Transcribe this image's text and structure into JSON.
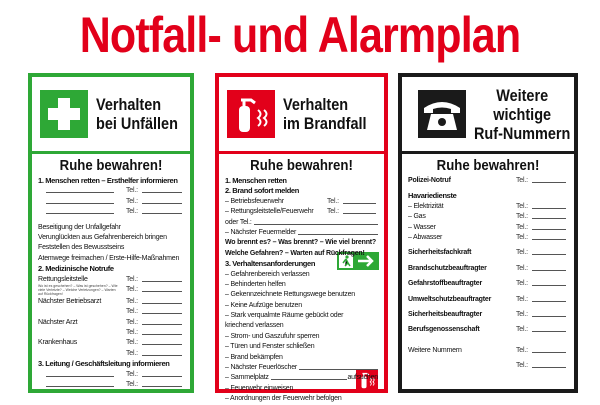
{
  "title": "Notfall- und Alarmplan",
  "colors": {
    "title": "#e2001a",
    "first_aid": "#2ea836",
    "fire": "#e2001a",
    "phone": "#1a1a1a"
  },
  "tel": "Tel.:",
  "panels": [
    {
      "header": [
        "Verhalten",
        "bei Unfällen"
      ],
      "icon": "first-aid-cross-icon",
      "subtitle": "Ruhe bewahren!",
      "rows": [
        {
          "t": "h",
          "text": "1. Menschen retten – Ersthelfer informieren"
        },
        {
          "t": "blanktel"
        },
        {
          "t": "blanktel"
        },
        {
          "t": "blanktel"
        },
        {
          "t": "gap"
        },
        {
          "t": "text",
          "text": "Beseitigung der Unfallgefahr"
        },
        {
          "t": "text",
          "text": "Verunglückten aus Gefahrenbereich bringen"
        },
        {
          "t": "text",
          "text": "Feststellen des Bewusstseins"
        },
        {
          "t": "text",
          "text": "Atemwege freimachen / Erste-Hilfe-Maßnahmen"
        },
        {
          "t": "h",
          "text": "2. Medizinische Notrufe"
        },
        {
          "t": "tel",
          "text": "Rettungsleitstelle"
        },
        {
          "t": "tel",
          "text": "",
          "sub": "Wo ist es geschehen? – Was ist geschehen? – Wie viele Verletzte? – Welche Verletzungen? – Warten auf Rückfragen!"
        },
        {
          "t": "tel",
          "text": "Nächster Betriebsarzt"
        },
        {
          "t": "tel",
          "text": ""
        },
        {
          "t": "tel",
          "text": "Nächster Arzt"
        },
        {
          "t": "tel",
          "text": ""
        },
        {
          "t": "tel",
          "text": "Krankenhaus"
        },
        {
          "t": "tel",
          "text": ""
        },
        {
          "t": "h",
          "text": "3. Leitung / Geschäftsleitung informieren"
        },
        {
          "t": "blanktel"
        },
        {
          "t": "blanktel"
        }
      ]
    },
    {
      "header": [
        "Verhalten",
        "im Brandfall"
      ],
      "icon": "fire-extinguisher-icon",
      "subtitle": "Ruhe bewahren!",
      "rows": [
        {
          "t": "h",
          "text": "1. Menschen retten"
        },
        {
          "t": "h",
          "text": "2. Brand sofort melden"
        },
        {
          "t": "tel",
          "text": "– Betriebsfeuerwehr"
        },
        {
          "t": "tel",
          "text": "– Rettungsleitstelle/Feuerwehr"
        },
        {
          "t": "fill",
          "text": "   oder  Tel.:"
        },
        {
          "t": "fill",
          "text": "– Nächster Feuermelder"
        },
        {
          "t": "b",
          "text": "Wo brennt es? – Was brennt? – Wie viel brennt?"
        },
        {
          "t": "b",
          "text": "Welche Gefahren? – Warten auf Rückfragen!"
        },
        {
          "t": "h",
          "text": "3. Verhaltensanforderungen"
        },
        {
          "t": "text",
          "text": "– Gefahrenbereich verlassen"
        },
        {
          "t": "text",
          "text": "– Behinderten helfen"
        },
        {
          "t": "text",
          "text": "– Gekennzeichnete Rettungswege benutzen"
        },
        {
          "t": "text",
          "text": "– Keine Aufzüge benutzen"
        },
        {
          "t": "text",
          "text": "– Stark verqualmte Räume gebückt oder"
        },
        {
          "t": "text",
          "text": "   kriechend verlassen"
        },
        {
          "t": "text",
          "text": "– Strom- und Gaszufuhr sperren"
        },
        {
          "t": "text",
          "text": "– Türen und Fenster schließen"
        },
        {
          "t": "text",
          "text": "– Brand bekämpfen"
        },
        {
          "t": "fill",
          "text": "– Nächster Feuerlöscher"
        },
        {
          "t": "fillafter",
          "text": "– Sammelplatz",
          "after": "aufsuchen"
        },
        {
          "t": "text",
          "text": "– Feuerwehr einweisen"
        },
        {
          "t": "text",
          "text": "– Anordnungen der Feuerwehr befolgen"
        }
      ]
    },
    {
      "header": [
        "Weitere",
        "wichtige",
        "Ruf-Nummern"
      ],
      "icon": "telephone-icon",
      "subtitle": "Ruhe bewahren!",
      "rows": [
        {
          "t": "telb",
          "text": "Polizei-Notruf"
        },
        {
          "t": "gap"
        },
        {
          "t": "h",
          "text": "Havariedienste"
        },
        {
          "t": "tel",
          "text": "– Elektrizität"
        },
        {
          "t": "tel",
          "text": "– Gas"
        },
        {
          "t": "tel",
          "text": "– Wasser"
        },
        {
          "t": "tel",
          "text": "– Abwasser"
        },
        {
          "t": "gap"
        },
        {
          "t": "telb",
          "text": "Sicherheitsfachkraft"
        },
        {
          "t": "gap"
        },
        {
          "t": "telb",
          "text": "Brandschutzbeauftragter"
        },
        {
          "t": "gap"
        },
        {
          "t": "telb",
          "text": "Gefahrstoffbeauftragter"
        },
        {
          "t": "gap"
        },
        {
          "t": "telb",
          "text": "Umweltschutzbeauftragter"
        },
        {
          "t": "gap"
        },
        {
          "t": "telb",
          "text": "Sicherheitsbeauftragter"
        },
        {
          "t": "gap"
        },
        {
          "t": "telb",
          "text": "Berufsgenossenschaft"
        },
        {
          "t": "gap"
        },
        {
          "t": "gap"
        },
        {
          "t": "tel",
          "text": "Weitere Nummern"
        },
        {
          "t": "gap"
        },
        {
          "t": "tel",
          "text": ""
        }
      ]
    }
  ]
}
